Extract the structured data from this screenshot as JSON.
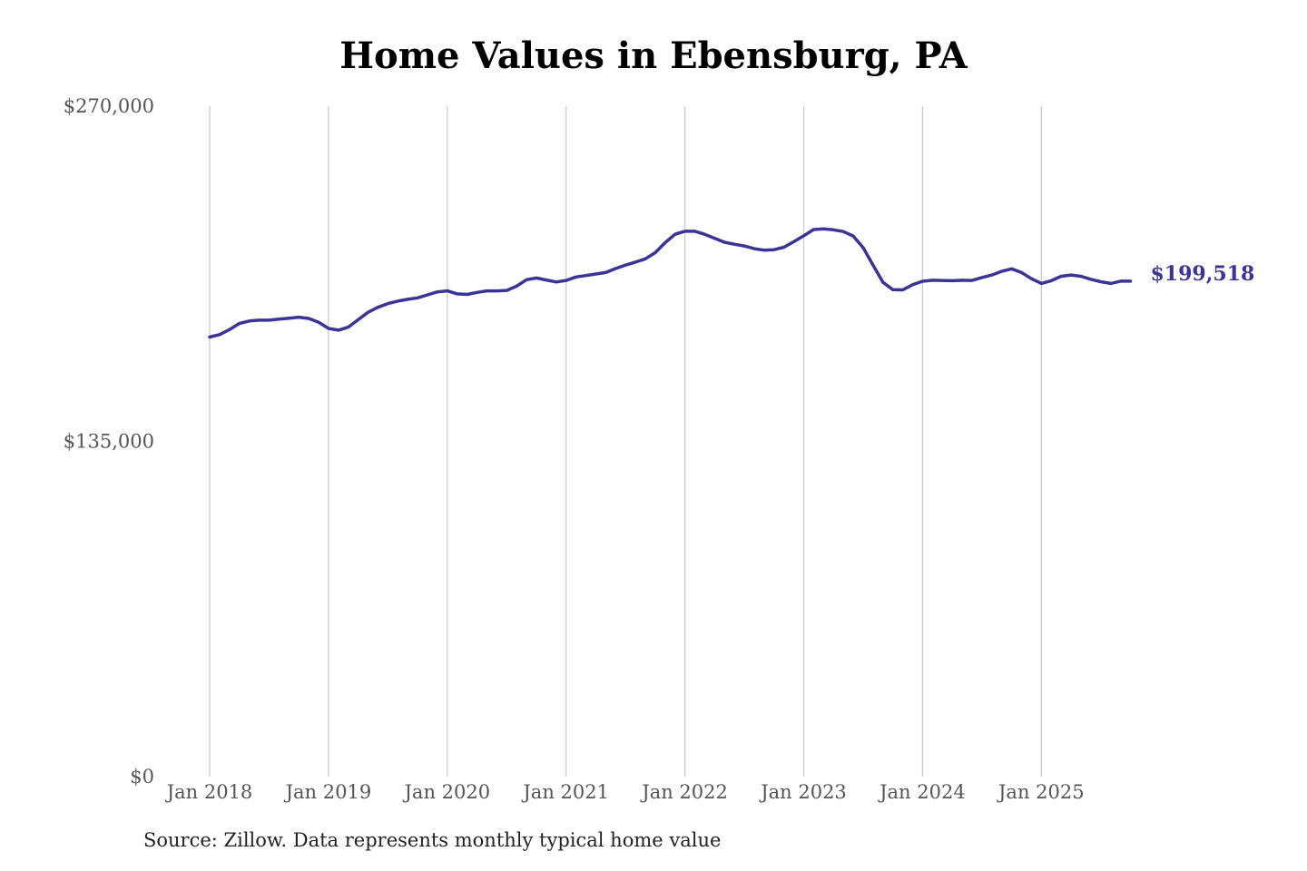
{
  "chart_data": {
    "type": "line",
    "title": "Home Values in Ebensburg, PA",
    "xlabel": "",
    "ylabel": "",
    "ylim": [
      0,
      270000
    ],
    "y_ticks": [
      0,
      135000,
      270000
    ],
    "y_tick_labels": [
      "$0",
      "$135,000",
      "$270,000"
    ],
    "x_ticks": [
      "2018-01",
      "2019-01",
      "2020-01",
      "2021-01",
      "2022-01",
      "2023-01",
      "2024-01",
      "2025-01"
    ],
    "x_tick_labels": [
      "Jan 2018",
      "Jan 2019",
      "Jan 2020",
      "Jan 2021",
      "Jan 2022",
      "Jan 2023",
      "Jan 2024",
      "Jan 2025"
    ],
    "grid": "vertical",
    "end_label": "$199,518",
    "line_color": "#3a3496",
    "series": [
      {
        "x": [
          "2018-01",
          "2018-02",
          "2018-03",
          "2018-04",
          "2018-05",
          "2018-06",
          "2018-07",
          "2018-08",
          "2018-09",
          "2018-10",
          "2018-11",
          "2018-12",
          "2019-01",
          "2019-02",
          "2019-03",
          "2019-04",
          "2019-05",
          "2019-06",
          "2019-07",
          "2019-08",
          "2019-09",
          "2019-10",
          "2019-11",
          "2019-12",
          "2020-01",
          "2020-02",
          "2020-03",
          "2020-04",
          "2020-05",
          "2020-06",
          "2020-07",
          "2020-08",
          "2020-09",
          "2020-10",
          "2020-11",
          "2020-12",
          "2021-01",
          "2021-02",
          "2021-03",
          "2021-04",
          "2021-05",
          "2021-06",
          "2021-07",
          "2021-08",
          "2021-09",
          "2021-10",
          "2021-11",
          "2021-12",
          "2022-01",
          "2022-02",
          "2022-03",
          "2022-04",
          "2022-05",
          "2022-06",
          "2022-07",
          "2022-08",
          "2022-09",
          "2022-10",
          "2022-11",
          "2022-12",
          "2023-01",
          "2023-02",
          "2023-03",
          "2023-04",
          "2023-05",
          "2023-06",
          "2023-07",
          "2023-08",
          "2023-09",
          "2023-10",
          "2023-11",
          "2023-12",
          "2024-01",
          "2024-02",
          "2024-03",
          "2024-04",
          "2024-05",
          "2024-06",
          "2024-07",
          "2024-08",
          "2024-09",
          "2024-10",
          "2024-11",
          "2024-12",
          "2025-01",
          "2025-02",
          "2025-03",
          "2025-04",
          "2025-05",
          "2025-06",
          "2025-07",
          "2025-08",
          "2025-09",
          "2025-10"
        ],
        "values": [
          177000,
          178000,
          180000,
          182500,
          183500,
          183800,
          183800,
          184200,
          184600,
          185000,
          184500,
          183000,
          180500,
          179800,
          181000,
          184000,
          187000,
          189000,
          190500,
          191500,
          192200,
          192800,
          194000,
          195200,
          195600,
          194400,
          194200,
          195000,
          195600,
          195600,
          195800,
          197500,
          200100,
          200800,
          200000,
          199200,
          199800,
          201200,
          201800,
          202400,
          203000,
          204600,
          206000,
          207200,
          208500,
          211000,
          215000,
          218400,
          219600,
          219600,
          218400,
          216800,
          215200,
          214400,
          213700,
          212600,
          212000,
          212200,
          213200,
          215400,
          217800,
          220300,
          220600,
          220200,
          219500,
          217700,
          213000,
          206000,
          199100,
          196100,
          196000,
          198100,
          199500,
          199900,
          199800,
          199700,
          199900,
          199800,
          201000,
          202000,
          203500,
          204500,
          203000,
          200500,
          198600,
          199700,
          201500,
          202000,
          201500,
          200300,
          199300,
          198600,
          199518,
          199518
        ]
      }
    ]
  },
  "source_note": "Source: Zillow. Data represents monthly typical home value"
}
